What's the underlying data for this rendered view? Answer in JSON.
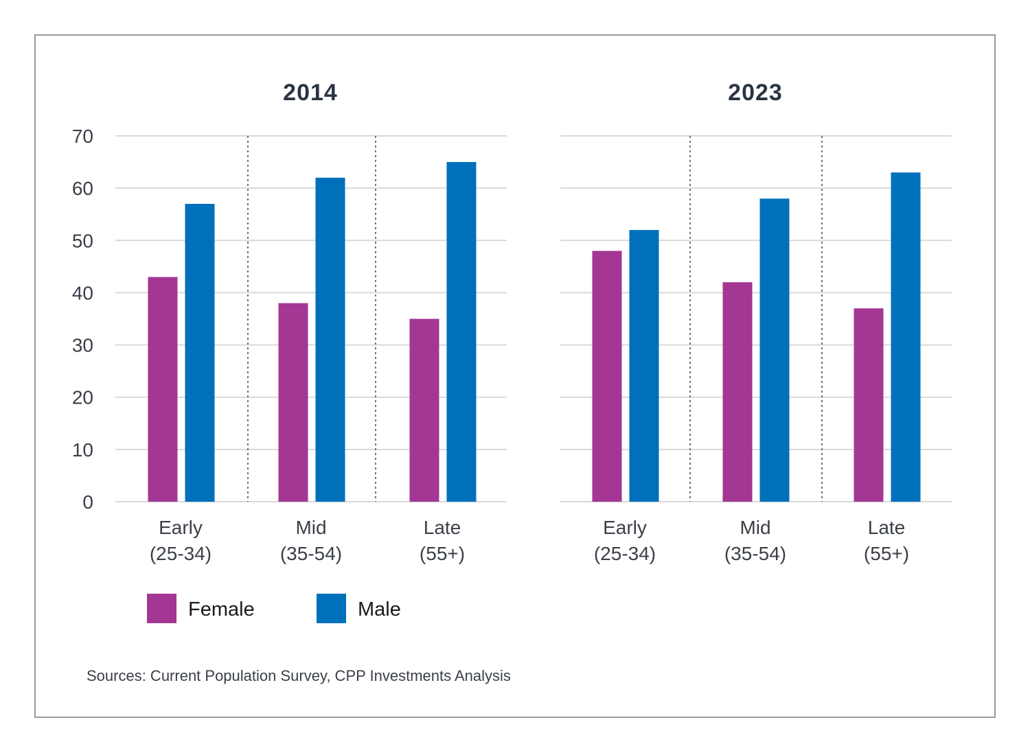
{
  "chart_data": [
    {
      "type": "bar",
      "title": "2014",
      "categories": [
        [
          "Early",
          "(25-34)"
        ],
        [
          "Mid",
          "(35-54)"
        ],
        [
          "Late",
          "(55+)"
        ]
      ],
      "series": [
        {
          "name": "Female",
          "values": [
            43,
            38,
            35
          ]
        },
        {
          "name": "Male",
          "values": [
            57,
            62,
            65
          ]
        }
      ],
      "yticks": [
        "0",
        "10",
        "20",
        "30",
        "40",
        "50",
        "60",
        "70"
      ],
      "ylim": [
        0,
        70
      ],
      "grid": true
    },
    {
      "type": "bar",
      "title": "2023",
      "categories": [
        [
          "Early",
          "(25-34)"
        ],
        [
          "Mid",
          "(35-54)"
        ],
        [
          "Late",
          "(55+)"
        ]
      ],
      "series": [
        {
          "name": "Female",
          "values": [
            48,
            42,
            37
          ]
        },
        {
          "name": "Male",
          "values": [
            52,
            58,
            63
          ]
        }
      ],
      "ylim": [
        0,
        70
      ],
      "grid": true
    }
  ],
  "legend": [
    {
      "label": "Female",
      "color": "#a33793"
    },
    {
      "label": "Male",
      "color": "#0070bb"
    }
  ],
  "colors": {
    "female": "#a33793",
    "male": "#0070bb",
    "grid": "#d9d9d9",
    "divider": "#6e7278"
  },
  "source": "Sources: Current Population Survey, CPP Investments Analysis"
}
